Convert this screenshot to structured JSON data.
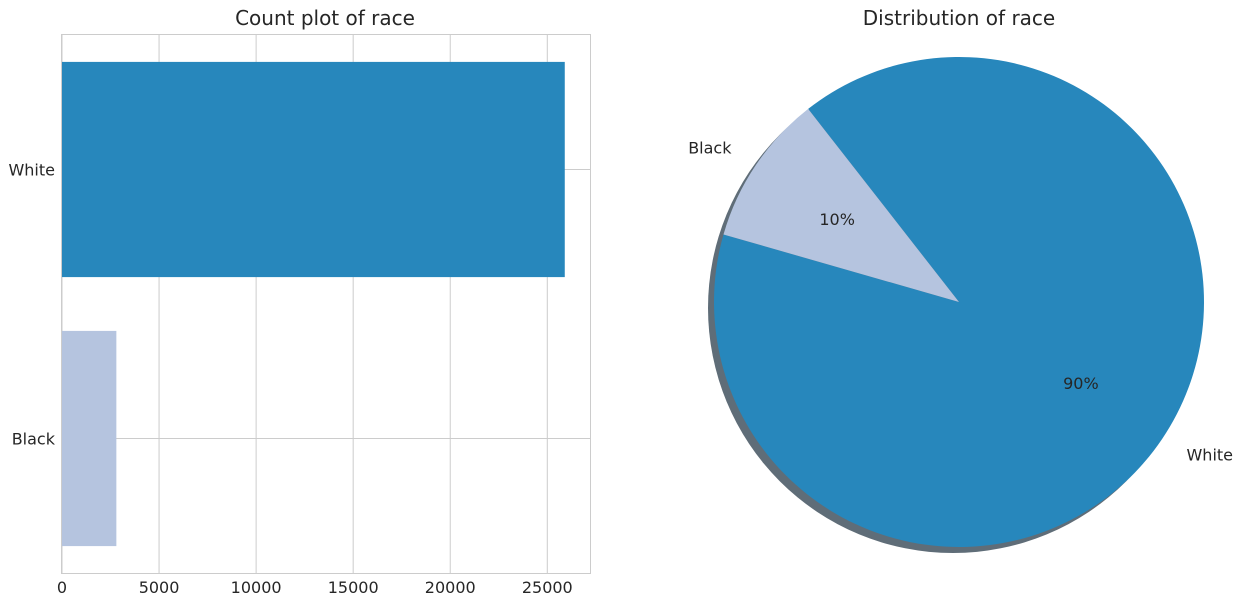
{
  "colors": {
    "white_series": "#2787bc",
    "black_series": "#b5c4df",
    "grid": "#cccccc",
    "axis_frame": "#cccccc",
    "shadow": "#5f6d78"
  },
  "chart_data": [
    {
      "type": "bar",
      "orientation": "horizontal",
      "title": "Count plot of race",
      "categories": [
        "White",
        "Black"
      ],
      "values": [
        25900,
        2800
      ],
      "xlabel": "",
      "ylabel": "",
      "xlim": [
        0,
        27200
      ],
      "xticks": [
        0,
        5000,
        10000,
        15000,
        20000,
        25000
      ],
      "xtick_labels": [
        "0",
        "5000",
        "10000",
        "15000",
        "20000",
        "25000"
      ],
      "grid": true
    },
    {
      "type": "pie",
      "title": "Distribution of race",
      "labels": [
        "White",
        "Black"
      ],
      "values": [
        90,
        10
      ],
      "pct_labels": [
        "90%",
        "10%"
      ],
      "shadow": true
    }
  ]
}
